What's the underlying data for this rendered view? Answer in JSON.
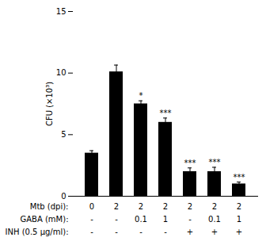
{
  "chart_data": {
    "type": "bar",
    "categories": [
      null,
      null,
      null,
      null,
      null,
      null,
      null
    ],
    "values": [
      3.5,
      10.1,
      7.5,
      6.0,
      2.0,
      2.0,
      1.0
    ],
    "errors": [
      0.2,
      0.55,
      0.25,
      0.35,
      0.3,
      0.35,
      0.15
    ],
    "color": "#000000",
    "ylabel": "CFU (×10³)",
    "ylim": [
      0,
      15
    ],
    "yticks": [
      0,
      5,
      10,
      15
    ],
    "grid": false,
    "tick_labels": "y",
    "significance": [
      null,
      null,
      "*",
      "***",
      "***",
      "***",
      "***"
    ],
    "rows": [
      {
        "label": "Mtb (dpi):",
        "values": [
          "0",
          "2",
          "2",
          "2",
          "2",
          "2",
          "2"
        ]
      },
      {
        "label": "GABA (mM):",
        "values": [
          "-",
          "-",
          "0.1",
          "1",
          "-",
          "0.1",
          "1"
        ]
      },
      {
        "label": "INH (0.5 μg/ml):",
        "values": [
          "-",
          "-",
          "-",
          "-",
          "+",
          "+",
          "+"
        ]
      }
    ]
  }
}
